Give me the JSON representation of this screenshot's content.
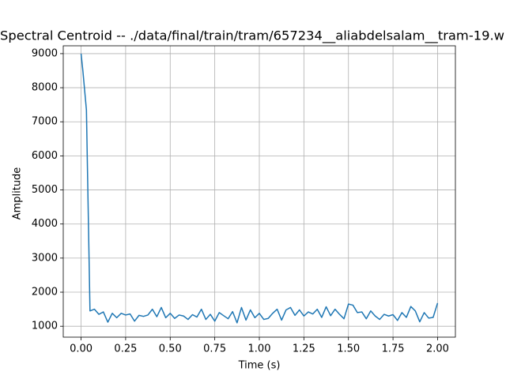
{
  "chart_data": {
    "type": "line",
    "title": "Spectral Centroid -- ./data/final/train/tram/657234__aliabdelsalam__tram-19.w",
    "x_label": "Time (s)",
    "y_label": "Amplitude",
    "x": [
      0,
      0.01,
      0.03,
      0.05,
      0.075,
      0.1,
      0.125,
      0.15,
      0.175,
      0.2,
      0.225,
      0.25,
      0.275,
      0.3,
      0.325,
      0.35,
      0.375,
      0.4,
      0.425,
      0.45,
      0.475,
      0.5,
      0.525,
      0.55,
      0.575,
      0.6,
      0.625,
      0.65,
      0.675,
      0.7,
      0.725,
      0.75,
      0.775,
      0.8,
      0.825,
      0.85,
      0.875,
      0.9,
      0.925,
      0.95,
      0.975,
      1.0,
      1.025,
      1.05,
      1.075,
      1.1,
      1.125,
      1.15,
      1.175,
      1.2,
      1.225,
      1.25,
      1.275,
      1.3,
      1.325,
      1.35,
      1.375,
      1.4,
      1.425,
      1.45,
      1.475,
      1.5,
      1.525,
      1.55,
      1.575,
      1.6,
      1.625,
      1.65,
      1.675,
      1.7,
      1.725,
      1.75,
      1.775,
      1.8,
      1.825,
      1.85,
      1.875,
      1.9,
      1.925,
      1.95,
      1.975,
      2.0
    ],
    "series": [
      {
        "color": "#1f77b4",
        "values": [
          9000,
          8500,
          7350,
          1450,
          1500,
          1350,
          1420,
          1120,
          1380,
          1250,
          1380,
          1330,
          1360,
          1150,
          1320,
          1290,
          1330,
          1500,
          1280,
          1550,
          1250,
          1380,
          1230,
          1330,
          1300,
          1200,
          1340,
          1270,
          1500,
          1200,
          1350,
          1150,
          1400,
          1310,
          1220,
          1430,
          1100,
          1550,
          1180,
          1480,
          1250,
          1380,
          1200,
          1230,
          1380,
          1500,
          1180,
          1480,
          1550,
          1320,
          1480,
          1300,
          1420,
          1360,
          1500,
          1260,
          1570,
          1310,
          1500,
          1350,
          1220,
          1650,
          1620,
          1400,
          1420,
          1220,
          1450,
          1300,
          1200,
          1350,
          1300,
          1340,
          1170,
          1400,
          1260,
          1580,
          1450,
          1130,
          1400,
          1240,
          1260,
          1680
        ]
      }
    ],
    "xlim": [
      -0.1,
      2.1
    ],
    "xticks": [
      {
        "value": 0,
        "label": "0.00"
      },
      {
        "value": 0.25,
        "label": "0.25"
      },
      {
        "value": 0.5,
        "label": "0.50"
      },
      {
        "value": 0.75,
        "label": "0.75"
      },
      {
        "value": 1,
        "label": "1.00"
      },
      {
        "value": 1.25,
        "label": "1.25"
      },
      {
        "value": 1.5,
        "label": "1.50"
      },
      {
        "value": 1.75,
        "label": "1.75"
      },
      {
        "value": 2,
        "label": "2.00"
      }
    ],
    "ylim": [
      680,
      9230
    ],
    "yticks": [
      1000,
      2000,
      3000,
      4000,
      5000,
      6000,
      7000,
      8000,
      9000
    ],
    "grid": true
  }
}
